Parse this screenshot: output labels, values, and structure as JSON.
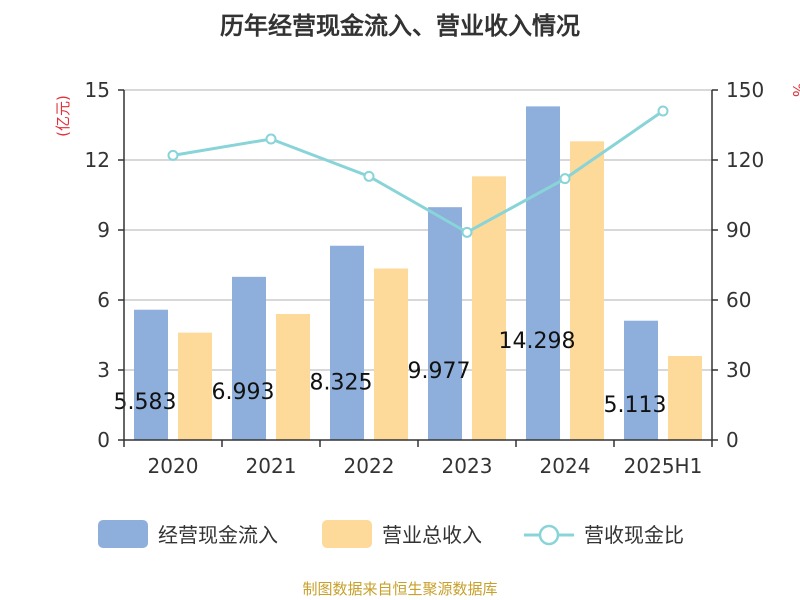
{
  "chart_data": {
    "type": "bar",
    "title": "历年经营现金流入、营业收入情况",
    "categories": [
      "2020",
      "2021",
      "2022",
      "2023",
      "2024",
      "2025H1"
    ],
    "series": [
      {
        "name": "经营现金流入",
        "type": "bar",
        "axis": "left",
        "color": "#8eaedb",
        "values": [
          5.583,
          6.993,
          8.325,
          9.977,
          14.298,
          5.113
        ],
        "labels": [
          "5.583",
          "6.993",
          "8.325",
          "9.977",
          "14.298",
          "5.113"
        ]
      },
      {
        "name": "营业总收入",
        "type": "bar",
        "axis": "left",
        "color": "#fdd99a",
        "values": [
          4.6,
          5.4,
          7.35,
          11.3,
          12.8,
          3.6
        ]
      },
      {
        "name": "营收现金比",
        "type": "line",
        "axis": "right",
        "color": "#88d4d8",
        "values": [
          122,
          129,
          113,
          89,
          112,
          141
        ]
      }
    ],
    "y_left": {
      "label": "(亿元)",
      "min": 0,
      "max": 15,
      "ticks": [
        "0",
        "3",
        "6",
        "9",
        "12",
        "15"
      ]
    },
    "y_right": {
      "label": "%",
      "min": 0,
      "max": 150,
      "ticks": [
        "0",
        "30",
        "60",
        "90",
        "120",
        "150"
      ]
    },
    "grid": true,
    "legend_position": "bottom"
  },
  "source": "制图数据来自恒生聚源数据库",
  "colors": {
    "title": "#333333",
    "axis_unit": "#e0303a",
    "source": "#c8a02a",
    "axis": "#333333",
    "grid": "#cccccc"
  }
}
